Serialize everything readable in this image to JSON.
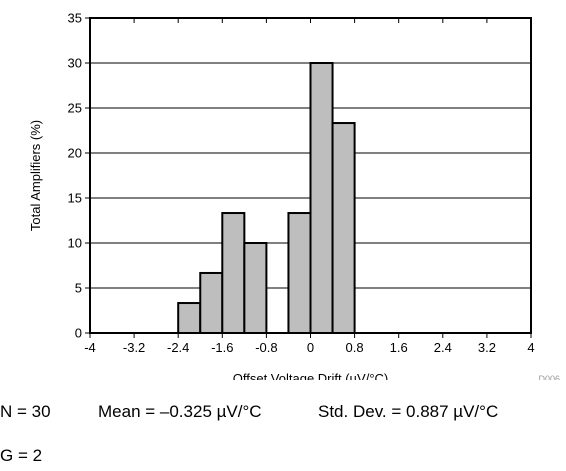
{
  "chart_data": {
    "type": "bar",
    "xlabel": "Offset Voltage Drift  (µV/°C)",
    "ylabel": "Total Amplifiers (%)",
    "xlim": [
      -4,
      4
    ],
    "ylim": [
      0,
      35
    ],
    "xticks": [
      -4,
      -3.2,
      -2.4,
      -1.6,
      -0.8,
      0,
      0.8,
      1.6,
      2.4,
      3.2,
      4
    ],
    "xtick_labels": [
      "-4",
      "-3.2",
      "-2.4",
      "-1.6",
      "-0.8",
      "0",
      "0.8",
      "1.6",
      "2.4",
      "3.2",
      "4"
    ],
    "yticks": [
      0,
      5,
      10,
      15,
      20,
      25,
      30,
      35
    ],
    "ytick_labels": [
      "0",
      "5",
      "10",
      "15",
      "20",
      "25",
      "30",
      "35"
    ],
    "grid": "horizontal",
    "bin_width": 0.4,
    "bins": [
      {
        "start": -2.4,
        "end": -2.0,
        "value": 3.33
      },
      {
        "start": -2.0,
        "end": -1.6,
        "value": 6.67
      },
      {
        "start": -1.6,
        "end": -1.2,
        "value": 13.33
      },
      {
        "start": -1.2,
        "end": -0.8,
        "value": 10.0
      },
      {
        "start": -0.8,
        "end": -0.4,
        "value": 0
      },
      {
        "start": -0.4,
        "end": 0.0,
        "value": 13.33
      },
      {
        "start": 0.0,
        "end": 0.4,
        "value": 30.0
      },
      {
        "start": 0.4,
        "end": 0.8,
        "value": 23.33
      }
    ],
    "figure_id": "D006",
    "bar_color": "#bebebe"
  },
  "caption": {
    "n": "N = 30",
    "mean": "Mean = –0.325 µV/°C",
    "std": "Std. Dev. = 0.887 µV/°C",
    "g": "G = 2"
  }
}
